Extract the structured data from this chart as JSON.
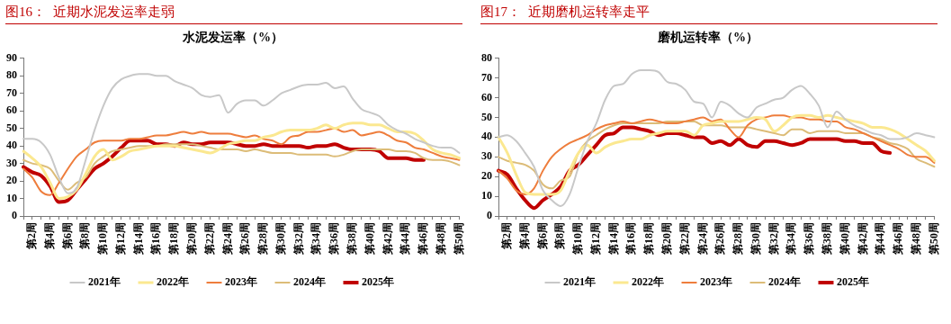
{
  "chart_data": [
    {
      "type": "line",
      "title": "图16：  近期水泥发运率走弱",
      "subtitle": "水泥发运率（%）",
      "categories": [
        null,
        "第2周",
        null,
        "第4周",
        null,
        "第6周",
        null,
        "第8周",
        null,
        "第10周",
        null,
        "第12周",
        null,
        "第14周",
        null,
        "第16周",
        null,
        "第18周",
        null,
        "第20周",
        null,
        "第22周",
        null,
        "第24周",
        null,
        "第26周",
        null,
        "第28周",
        null,
        "第30周",
        null,
        "第32周",
        null,
        "第34周",
        null,
        "第36周",
        null,
        "第38周",
        null,
        "第40周",
        null,
        "第42周",
        null,
        "第44周",
        null,
        "第46周",
        null,
        "第48周",
        null,
        "第50周"
      ],
      "ylim": [
        0,
        90
      ],
      "yticks": [
        0,
        10,
        20,
        30,
        40,
        50,
        60,
        70,
        80,
        90
      ],
      "legend": "bottom",
      "marker": "none",
      "series": [
        {
          "name": "2021年",
          "color": "#c8c8c8",
          "values": [
            44,
            44,
            42,
            35,
            22,
            13,
            16,
            32,
            49,
            63,
            73,
            78,
            80,
            81,
            81,
            80,
            80,
            77,
            75,
            73,
            69,
            68,
            69,
            59,
            64,
            66,
            66,
            63,
            66,
            70,
            72,
            74,
            75,
            75,
            76,
            73,
            74,
            67,
            61,
            59,
            57,
            52,
            49,
            47,
            44,
            42,
            40,
            39,
            39,
            36
          ]
        },
        {
          "name": "2022年",
          "color": "#fbe890",
          "values": [
            37,
            33,
            28,
            19,
            10,
            11,
            15,
            24,
            34,
            38,
            32,
            34,
            37,
            38,
            39,
            40,
            40,
            40,
            39,
            38,
            37,
            36,
            38,
            41,
            42,
            43,
            43,
            45,
            46,
            48,
            49,
            49,
            49,
            50,
            52,
            50,
            52,
            53,
            53,
            52,
            52,
            50,
            48,
            48,
            47,
            43,
            38,
            36,
            35,
            33
          ]
        },
        {
          "name": "2023年",
          "color": "#ee7d3c",
          "values": [
            27,
            22,
            14,
            12,
            19,
            27,
            34,
            38,
            42,
            43,
            43,
            43,
            44,
            44,
            45,
            46,
            46,
            47,
            48,
            47,
            48,
            47,
            47,
            47,
            46,
            45,
            46,
            44,
            43,
            41,
            45,
            46,
            48,
            48,
            49,
            50,
            48,
            49,
            46,
            47,
            48,
            46,
            43,
            42,
            39,
            38,
            36,
            34,
            33,
            32
          ]
        },
        {
          "name": "2024年",
          "color": "#dcbc78",
          "values": [
            32,
            30,
            29,
            27,
            20,
            15,
            19,
            22,
            30,
            34,
            37,
            38,
            39,
            40,
            40,
            40,
            41,
            41,
            41,
            41,
            40,
            39,
            38,
            38,
            38,
            37,
            38,
            37,
            36,
            36,
            36,
            35,
            35,
            35,
            35,
            34,
            35,
            37,
            38,
            38,
            38,
            38,
            37,
            37,
            36,
            33,
            32,
            32,
            31,
            29
          ]
        },
        {
          "name": "2025年",
          "color": "#c00000",
          "values": [
            28,
            25,
            23,
            17,
            8,
            9,
            15,
            21,
            27,
            30,
            34,
            39,
            43,
            43,
            43,
            41,
            41,
            40,
            42,
            41,
            41,
            42,
            42,
            42,
            41,
            40,
            40,
            41,
            40,
            40,
            40,
            40,
            39,
            40,
            40,
            41,
            39,
            38,
            38,
            38,
            37,
            33,
            33,
            33,
            32,
            32,
            null,
            null,
            null,
            null
          ]
        }
      ]
    },
    {
      "type": "line",
      "title": "图17：  近期磨机运转率走平",
      "subtitle": "磨机运转率（%）",
      "categories": [
        null,
        "第2周",
        null,
        "第4周",
        null,
        "第6周",
        null,
        "第8周",
        null,
        "第10周",
        null,
        "第12周",
        null,
        "第14周",
        null,
        "第16周",
        null,
        "第18周",
        null,
        "第20周",
        null,
        "第22周",
        null,
        "第24周",
        null,
        "第26周",
        null,
        "第28周",
        null,
        "第30周",
        null,
        "第32周",
        null,
        "第34周",
        null,
        "第36周",
        null,
        "第38周",
        null,
        "第40周",
        null,
        "第42周",
        null,
        "第44周",
        null,
        "第46周",
        null,
        "第48周",
        null,
        "第50周"
      ],
      "ylim": [
        0,
        80
      ],
      "yticks": [
        0,
        10,
        20,
        30,
        40,
        50,
        60,
        70,
        80
      ],
      "legend": "bottom",
      "marker": "none",
      "series": [
        {
          "name": "2021年",
          "color": "#c8c8c8",
          "values": [
            40,
            41,
            38,
            32,
            25,
            13,
            8,
            5,
            11,
            25,
            38,
            47,
            59,
            66,
            67,
            72,
            74,
            74,
            73,
            68,
            67,
            64,
            58,
            57,
            50,
            58,
            56,
            52,
            50,
            55,
            57,
            59,
            60,
            64,
            66,
            62,
            56,
            45,
            53,
            49,
            46,
            44,
            42,
            41,
            39,
            39,
            40,
            42,
            41,
            40
          ]
        },
        {
          "name": "2022年",
          "color": "#fbe890",
          "values": [
            40,
            32,
            21,
            12,
            11,
            11,
            11,
            13,
            23,
            32,
            36,
            32,
            35,
            37,
            38,
            39,
            39,
            41,
            42,
            43,
            43,
            43,
            41,
            46,
            47,
            48,
            48,
            48,
            49,
            50,
            49,
            43,
            46,
            50,
            51,
            51,
            50,
            51,
            50,
            49,
            48,
            47,
            45,
            45,
            44,
            42,
            39,
            36,
            33,
            28
          ]
        },
        {
          "name": "2023年",
          "color": "#ee7d3c",
          "values": [
            23,
            19,
            13,
            11,
            14,
            23,
            30,
            34,
            37,
            39,
            41,
            44,
            46,
            47,
            48,
            47,
            48,
            49,
            48,
            47,
            47,
            48,
            49,
            50,
            48,
            49,
            44,
            40,
            46,
            49,
            50,
            51,
            51,
            50,
            50,
            49,
            49,
            48,
            48,
            45,
            44,
            42,
            40,
            38,
            36,
            34,
            31,
            30,
            30,
            27
          ]
        },
        {
          "name": "2024年",
          "color": "#dcbc78",
          "values": [
            30,
            28,
            27,
            26,
            23,
            16,
            14,
            18,
            20,
            32,
            38,
            41,
            44,
            46,
            47,
            47,
            47,
            47,
            47,
            48,
            48,
            48,
            48,
            46,
            46,
            46,
            45,
            45,
            45,
            44,
            43,
            42,
            41,
            44,
            44,
            42,
            43,
            43,
            43,
            42,
            42,
            42,
            40,
            39,
            37,
            36,
            34,
            29,
            27,
            25
          ]
        },
        {
          "name": "2025年",
          "color": "#c00000",
          "values": [
            23,
            21,
            14,
            8,
            4,
            8,
            11,
            15,
            23,
            26,
            31,
            36,
            41,
            42,
            45,
            45,
            44,
            43,
            41,
            42,
            42,
            41,
            40,
            40,
            37,
            38,
            36,
            39,
            36,
            35,
            38,
            38,
            37,
            36,
            37,
            39,
            39,
            39,
            39,
            38,
            38,
            37,
            37,
            33,
            32,
            null,
            null,
            null,
            null,
            null
          ]
        }
      ]
    }
  ]
}
